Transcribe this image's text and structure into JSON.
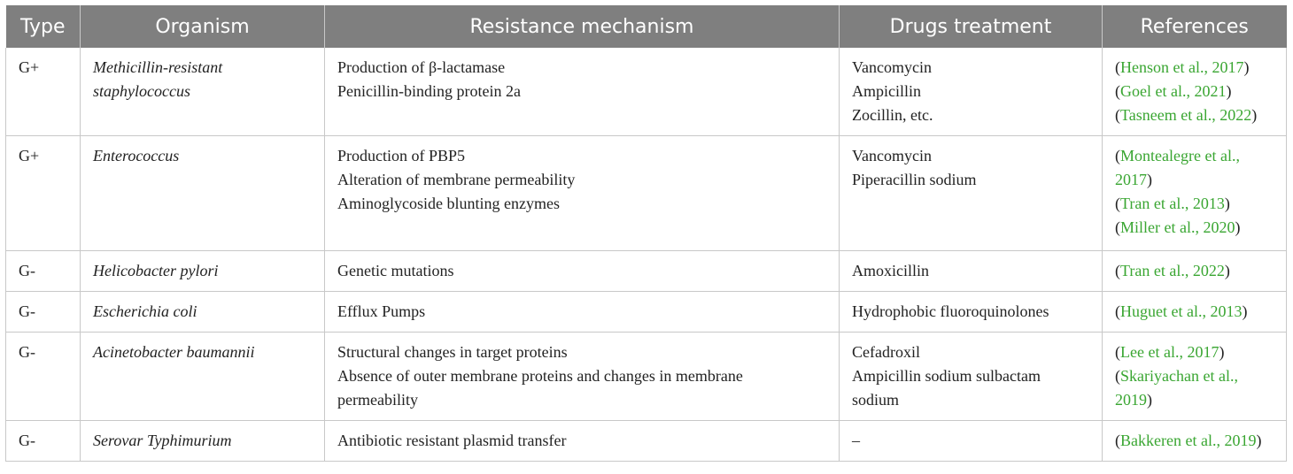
{
  "headers": [
    "Type",
    "Organism",
    "Resistance mechanism",
    "Drugs treatment",
    "References"
  ],
  "rows": [
    {
      "type": "G+",
      "organism": [
        "Methicillin-resistant",
        "staphylococcus"
      ],
      "mechanism": [
        "Production of β-lactamase",
        "Penicillin-binding protein 2a"
      ],
      "drugs": [
        "Vancomycin",
        "Ampicillin",
        "Zocillin, etc."
      ],
      "refs": [
        [
          "Henson et al., 2017"
        ],
        [
          "Goel et al., 2021"
        ],
        [
          "Tasneem et al., 2022"
        ]
      ]
    },
    {
      "type": "G+",
      "organism": [
        "Enterococcus"
      ],
      "mechanism": [
        "Production of PBP5",
        "Alteration of membrane permeability",
        "Aminoglycoside blunting enzymes"
      ],
      "drugs": [
        "Vancomycin",
        "Piperacillin sodium"
      ],
      "refs": [
        [
          "Montealegre et al.,",
          "2017"
        ],
        [
          "Tran et al., 2013"
        ],
        [
          "Miller et al., 2020"
        ]
      ]
    },
    {
      "type": "G-",
      "organism": [
        "Helicobacter pylori"
      ],
      "mechanism": [
        "Genetic mutations"
      ],
      "drugs": [
        "Amoxicillin"
      ],
      "refs": [
        [
          "Tran et al., 2022"
        ]
      ]
    },
    {
      "type": "G-",
      "organism": [
        "Escherichia coli"
      ],
      "mechanism": [
        "Efflux Pumps"
      ],
      "drugs": [
        "Hydrophobic fluoroquinolones"
      ],
      "refs": [
        [
          "Huguet et al., 2013"
        ]
      ]
    },
    {
      "type": "G-",
      "organism": [
        "Acinetobacter baumannii"
      ],
      "mechanism": [
        "Structural changes in target proteins",
        "Absence of outer membrane proteins and changes in membrane",
        "permeability"
      ],
      "drugs": [
        "Cefadroxil",
        "Ampicillin sodium sulbactam",
        "sodium"
      ],
      "refs": [
        [
          "Lee et al., 2017"
        ],
        [
          "Skariyachan et al.,",
          "2019"
        ]
      ]
    },
    {
      "type": "G-",
      "organism": [
        "Serovar Typhimurium"
      ],
      "mechanism": [
        "Antibiotic resistant plasmid transfer"
      ],
      "drugs": [
        "–"
      ],
      "refs": [
        [
          "Bakkeren et al., 2019"
        ]
      ]
    }
  ]
}
